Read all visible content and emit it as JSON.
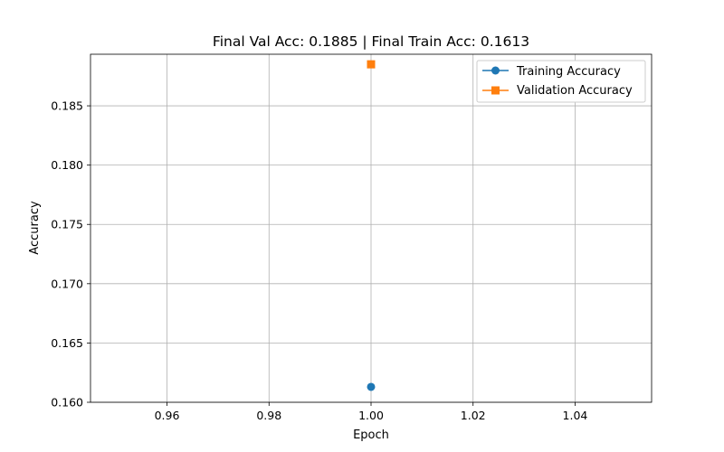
{
  "chart_data": {
    "type": "scatter",
    "title": "Final Val Acc: 0.1885 | Final Train Acc: 0.1613",
    "xlabel": "Epoch",
    "ylabel": "Accuracy",
    "xlim": [
      0.945,
      1.055
    ],
    "ylim": [
      0.16,
      0.18935
    ],
    "xticks": [
      0.96,
      0.98,
      1.0,
      1.02,
      1.04
    ],
    "xtick_labels": [
      "0.96",
      "0.98",
      "1.00",
      "1.02",
      "1.04"
    ],
    "yticks": [
      0.16,
      0.165,
      0.17,
      0.175,
      0.18,
      0.185
    ],
    "ytick_labels": [
      "0.160",
      "0.165",
      "0.170",
      "0.175",
      "0.180",
      "0.185"
    ],
    "grid": true,
    "legend_position": "top-right",
    "series": [
      {
        "name": "Training Accuracy",
        "marker": "circle",
        "color": "#1f77b4",
        "x": [
          1.0
        ],
        "y": [
          0.1613
        ]
      },
      {
        "name": "Validation Accuracy",
        "marker": "square",
        "color": "#ff7f0e",
        "x": [
          1.0
        ],
        "y": [
          0.1885
        ]
      }
    ]
  }
}
